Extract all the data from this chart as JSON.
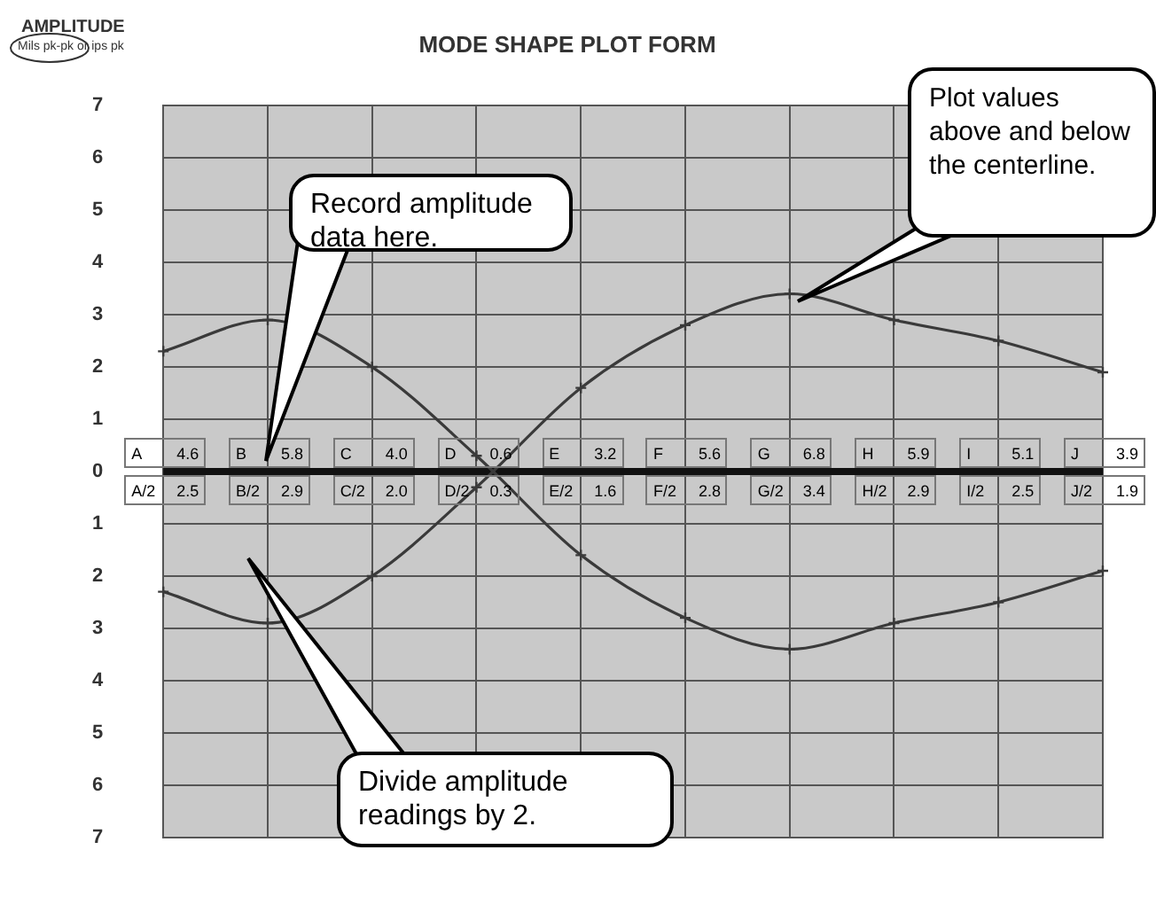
{
  "chart_data": {
    "type": "line",
    "title": "MODE SHAPE PLOT FORM",
    "ylabel": "AMPLITUDE",
    "categories": [
      null,
      null,
      null,
      null,
      null,
      null,
      null,
      null,
      null,
      null
    ],
    "series": [
      {
        "color": "#3a3a3a",
        "values": [
          2.3,
          2.9,
          2.0,
          0.3,
          -1.6,
          -2.8,
          -3.4,
          -2.9,
          -2.5,
          -1.9
        ]
      },
      {
        "color": "#3a3a3a",
        "values": [
          -2.3,
          -2.9,
          -2.0,
          -0.3,
          1.6,
          2.8,
          3.4,
          2.9,
          2.5,
          1.9
        ]
      }
    ],
    "ylim": [
      -7,
      7
    ],
    "yticks": [
      {
        "value": -7,
        "label": "7"
      },
      {
        "value": -6,
        "label": "6"
      },
      {
        "value": -5,
        "label": "5"
      },
      {
        "value": -4,
        "label": "4"
      },
      {
        "value": -3,
        "label": "3"
      },
      {
        "value": -2,
        "label": "2"
      },
      {
        "value": -1,
        "label": "1"
      },
      0,
      1,
      2,
      3,
      4,
      5,
      6,
      7
    ],
    "grid": true,
    "marker": "cross",
    "line_style": "solid",
    "legend": false,
    "tick_labels": "y",
    "ref_lines": [
      {
        "axis": "y",
        "value": 0,
        "color": "#111111"
      }
    ],
    "annotations": [
      "Mils pk-pk or ips pk",
      "Record amplitude data here.",
      "Plot values above and below the centerline.",
      "Divide  amplitude readings by 2.",
      "A",
      "4.6",
      "A/2",
      "2.5",
      "B",
      "5.8",
      "B/2",
      "2.9",
      "C",
      "4.0",
      "C/2",
      "2.0",
      "D",
      "0.6",
      "D/2",
      "0.3",
      "E",
      "3.2",
      "E/2",
      "1.6",
      "F",
      "5.6",
      "F/2",
      "2.8",
      "G",
      "6.8",
      "G/2",
      "3.4",
      "H",
      "5.9",
      "H/2",
      "2.9",
      "I",
      "5.1",
      "I/2",
      "2.5",
      "J",
      "3.9",
      "J/2",
      "1.9"
    ]
  }
}
